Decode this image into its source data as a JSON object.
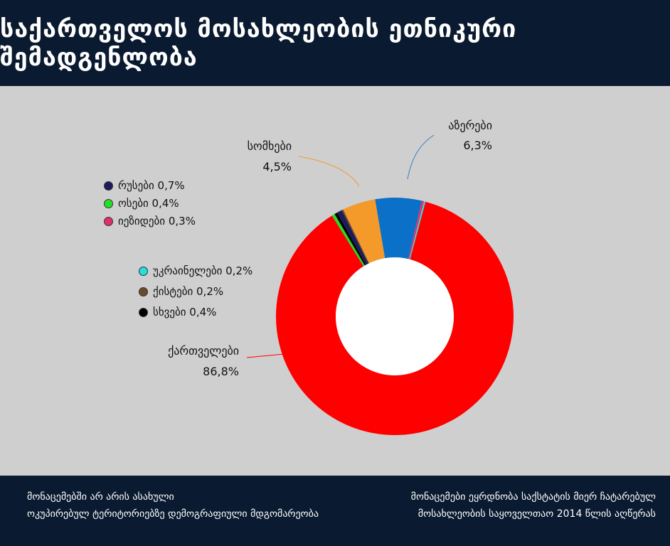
{
  "header": {
    "title": "საქართველოს მოსახლეობის ეთნიკური შემადგენლობა"
  },
  "chart_data": {
    "type": "pie",
    "title": "საქართველოს მოსახლეობის ეთნიკური შემადგენლობა",
    "donut": true,
    "slices": [
      {
        "name": "ქართველები",
        "value": 86.8,
        "label": "86,8%",
        "color": "#ff0000"
      },
      {
        "name": "ოსები",
        "value": 0.4,
        "label": "0,4%",
        "color": "#22e022"
      },
      {
        "name": "სხვები",
        "value": 0.4,
        "label": "0,4%",
        "color": "#000000"
      },
      {
        "name": "რუსები",
        "value": 0.7,
        "label": "0,7%",
        "color": "#1c1c5c"
      },
      {
        "name": "ქისტები",
        "value": 0.2,
        "label": "0,2%",
        "color": "#6b4a2a"
      },
      {
        "name": "სომხები",
        "value": 4.5,
        "label": "4,5%",
        "color": "#f39a2a"
      },
      {
        "name": "აზერები",
        "value": 6.3,
        "label": "6,3%",
        "color": "#0a70c8"
      },
      {
        "name": "იეზიდები",
        "value": 0.3,
        "label": "0,3%",
        "color": "#e0306a"
      },
      {
        "name": "უკრაინელები",
        "value": 0.2,
        "label": "0,2%",
        "color": "#22e0e0"
      }
    ],
    "legend_top": [
      {
        "text": "რუსები 0,7%",
        "color": "#1c1c5c"
      },
      {
        "text": "ოსები 0,4%",
        "color": "#22e022"
      },
      {
        "text": "იეზიდები 0,3%",
        "color": "#e0306a"
      }
    ],
    "legend_bottom": [
      {
        "text": "უკრაინელები 0,2%",
        "color": "#22e0e0"
      },
      {
        "text": "ქისტები 0,2%",
        "color": "#6b4a2a"
      },
      {
        "text": "სხვები 0,4%",
        "color": "#000000"
      }
    ],
    "callouts": {
      "azeri": {
        "name": "აზერები",
        "value": "6,3%"
      },
      "armenian": {
        "name": "სომხები",
        "value": "4,5%"
      },
      "georgian": {
        "name": "ქართველები",
        "value": "86,8%"
      }
    }
  },
  "footer": {
    "left_line1": "მონაცემებში არ არის ასახული",
    "left_line2": "ოკუპირებულ ტერიტორიებზე დემოგრაფიული მდგომარეობა",
    "right_line1": "მონაცემები ეყრდნობა საქსტატის მიერ ჩატარებულ",
    "right_line2": "მოსახლეობის საყოველთაო 2014 წლის აღწერას"
  }
}
